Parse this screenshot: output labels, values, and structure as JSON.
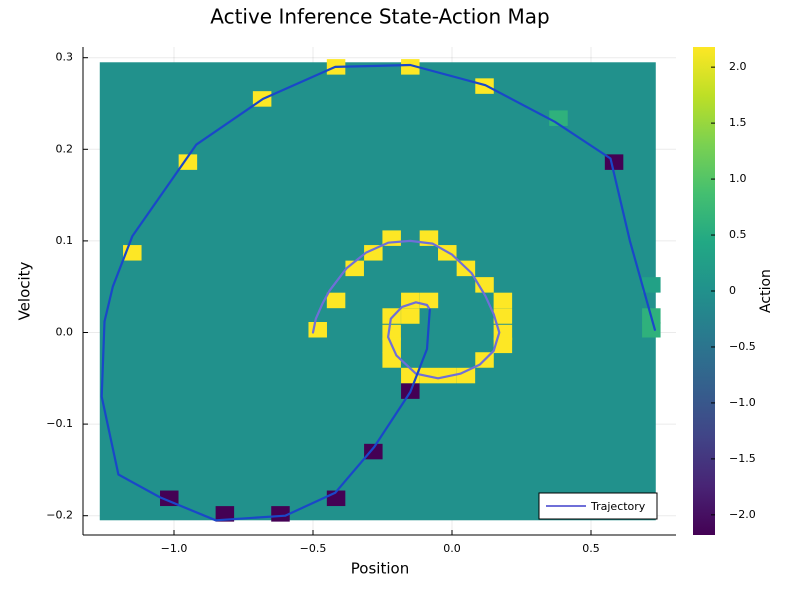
{
  "chart_data": {
    "type": "heatmap",
    "title": "Active Inference State-Action Map",
    "xlabel": "Position",
    "ylabel": "Velocity",
    "colorbar_label": "Action",
    "colormap": "viridis",
    "background_action": 0.0,
    "xlim": [
      -1.32,
      0.8
    ],
    "ylim": [
      -0.22,
      0.31
    ],
    "x_ticks": [
      -1.0,
      -0.5,
      0.0,
      0.5
    ],
    "x_tick_labels": [
      "−1.0",
      "−0.5",
      "0.0",
      "0.5"
    ],
    "y_ticks": [
      -0.2,
      -0.1,
      0.0,
      0.1,
      0.2,
      0.3
    ],
    "y_tick_labels": [
      "−0.2",
      "−0.1",
      "0.0",
      "0.1",
      "0.2",
      "0.3"
    ],
    "clim": [
      -2.18,
      2.18
    ],
    "colorbar_ticks": [
      -2.0,
      -1.5,
      -1.0,
      -0.5,
      0.0,
      0.5,
      1.0,
      1.5,
      2.0
    ],
    "colorbar_tick_labels": [
      "−2.0",
      "−1.5",
      "−1.0",
      "−0.5",
      "0",
      "0.5",
      "1.0",
      "1.5",
      "2.0"
    ],
    "grid": true,
    "legend_position": "bottom-right",
    "heatmap": {
      "x_range": [
        -1.267,
        0.733
      ],
      "y_range": [
        -0.205,
        0.295
      ],
      "cells": [
        {
          "x": -0.95,
          "y": 0.186,
          "action": 2.18
        },
        {
          "x": -0.683,
          "y": 0.255,
          "action": 2.18
        },
        {
          "x": -0.417,
          "y": 0.29,
          "action": 2.18
        },
        {
          "x": -0.15,
          "y": 0.29,
          "action": 2.18
        },
        {
          "x": 0.117,
          "y": 0.269,
          "action": 2.18
        },
        {
          "x": 0.383,
          "y": 0.234,
          "action": 0.6
        },
        {
          "x": 0.583,
          "y": 0.186,
          "action": -2.18
        },
        {
          "x": -1.15,
          "y": 0.087,
          "action": 2.18
        },
        {
          "x": 0.717,
          "y": 0.052,
          "action": 0.3
        },
        {
          "x": 0.717,
          "y": 0.018,
          "action": 0.6
        },
        {
          "x": 0.717,
          "y": 0.003,
          "action": 0.6
        },
        {
          "x": -0.217,
          "y": 0.103,
          "action": 2.18
        },
        {
          "x": -0.083,
          "y": 0.103,
          "action": 2.18
        },
        {
          "x": -0.283,
          "y": 0.087,
          "action": 2.18
        },
        {
          "x": -0.017,
          "y": 0.087,
          "action": 2.18
        },
        {
          "x": -0.35,
          "y": 0.07,
          "action": 2.18
        },
        {
          "x": 0.05,
          "y": 0.07,
          "action": 2.18
        },
        {
          "x": -0.417,
          "y": 0.035,
          "action": 2.18
        },
        {
          "x": 0.117,
          "y": 0.052,
          "action": 2.18
        },
        {
          "x": -0.15,
          "y": 0.035,
          "action": 2.18
        },
        {
          "x": -0.083,
          "y": 0.035,
          "action": 2.18
        },
        {
          "x": -0.217,
          "y": 0.018,
          "action": 2.18
        },
        {
          "x": -0.15,
          "y": 0.018,
          "action": 2.18
        },
        {
          "x": 0.183,
          "y": 0.035,
          "action": 2.18
        },
        {
          "x": 0.183,
          "y": 0.018,
          "action": 2.18
        },
        {
          "x": 0.183,
          "y": 0.0,
          "action": 2.18
        },
        {
          "x": 0.183,
          "y": -0.014,
          "action": 2.18
        },
        {
          "x": -0.217,
          "y": 0.0,
          "action": 2.18
        },
        {
          "x": -0.217,
          "y": -0.014,
          "action": 2.18
        },
        {
          "x": -0.217,
          "y": -0.03,
          "action": 2.18
        },
        {
          "x": -0.483,
          "y": 0.003,
          "action": 2.18
        },
        {
          "x": 0.117,
          "y": -0.03,
          "action": 2.18
        },
        {
          "x": -0.15,
          "y": -0.047,
          "action": 2.18
        },
        {
          "x": -0.083,
          "y": -0.047,
          "action": 2.18
        },
        {
          "x": -0.017,
          "y": -0.047,
          "action": 2.18
        },
        {
          "x": 0.05,
          "y": -0.047,
          "action": 2.18
        },
        {
          "x": -0.15,
          "y": -0.064,
          "action": -2.18
        },
        {
          "x": -0.283,
          "y": -0.13,
          "action": -2.18
        },
        {
          "x": -1.017,
          "y": -0.181,
          "action": -2.18
        },
        {
          "x": -0.417,
          "y": -0.181,
          "action": -2.18
        },
        {
          "x": -0.817,
          "y": -0.198,
          "action": -2.18
        },
        {
          "x": -0.617,
          "y": -0.198,
          "action": -2.18
        }
      ]
    },
    "series": [
      {
        "name": "Trajectory",
        "color": "#6f6fd8",
        "points": [
          {
            "x": -0.5,
            "y": 0.0
          },
          {
            "x": -0.49,
            "y": 0.015
          },
          {
            "x": -0.465,
            "y": 0.032
          },
          {
            "x": -0.44,
            "y": 0.046
          },
          {
            "x": -0.38,
            "y": 0.07
          },
          {
            "x": -0.31,
            "y": 0.087
          },
          {
            "x": -0.23,
            "y": 0.098
          },
          {
            "x": -0.15,
            "y": 0.1
          },
          {
            "x": -0.07,
            "y": 0.097
          },
          {
            "x": 0.0,
            "y": 0.085
          },
          {
            "x": 0.07,
            "y": 0.065
          },
          {
            "x": 0.12,
            "y": 0.04
          },
          {
            "x": 0.15,
            "y": 0.02
          },
          {
            "x": 0.17,
            "y": 0.0
          },
          {
            "x": 0.15,
            "y": -0.02
          },
          {
            "x": 0.1,
            "y": -0.035
          },
          {
            "x": 0.03,
            "y": -0.045
          },
          {
            "x": -0.05,
            "y": -0.05
          },
          {
            "x": -0.13,
            "y": -0.045
          },
          {
            "x": -0.2,
            "y": -0.025
          },
          {
            "x": -0.23,
            "y": -0.005
          },
          {
            "x": -0.22,
            "y": 0.015
          },
          {
            "x": -0.18,
            "y": 0.028
          },
          {
            "x": -0.13,
            "y": 0.033
          },
          {
            "x": -0.09,
            "y": 0.03
          },
          {
            "x": -0.08,
            "y": 0.025
          }
        ]
      },
      {
        "name": "",
        "color": "#1a47c9",
        "points": [
          {
            "x": -0.08,
            "y": 0.025
          },
          {
            "x": -0.09,
            "y": -0.018
          },
          {
            "x": -0.15,
            "y": -0.065
          },
          {
            "x": -0.28,
            "y": -0.125
          },
          {
            "x": -0.42,
            "y": -0.175
          },
          {
            "x": -0.6,
            "y": -0.2
          },
          {
            "x": -0.85,
            "y": -0.205
          },
          {
            "x": -1.05,
            "y": -0.18
          },
          {
            "x": -1.2,
            "y": -0.155
          },
          {
            "x": -1.26,
            "y": -0.07
          },
          {
            "x": -1.25,
            "y": 0.012
          },
          {
            "x": -1.22,
            "y": 0.05
          },
          {
            "x": -1.15,
            "y": 0.105
          },
          {
            "x": -0.92,
            "y": 0.205
          },
          {
            "x": -0.68,
            "y": 0.255
          },
          {
            "x": -0.42,
            "y": 0.29
          },
          {
            "x": -0.15,
            "y": 0.292
          },
          {
            "x": 0.12,
            "y": 0.27
          },
          {
            "x": 0.37,
            "y": 0.23
          },
          {
            "x": 0.57,
            "y": 0.19
          },
          {
            "x": 0.64,
            "y": 0.1
          },
          {
            "x": 0.73,
            "y": 0.003
          }
        ]
      }
    ],
    "legend": [
      {
        "label": "Trajectory",
        "color": "#6f6fd8"
      }
    ]
  }
}
